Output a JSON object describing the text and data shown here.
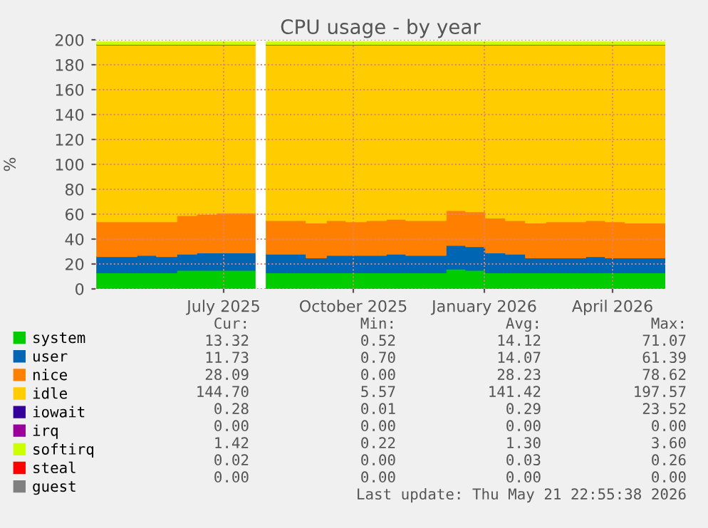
{
  "chart_data": {
    "type": "area",
    "stacked": true,
    "title": "CPU usage - by year",
    "ylabel": "%",
    "x": [
      "2025-04-17",
      "2025-05-01",
      "2025-05-15",
      "2025-05-29",
      "2025-06-12",
      "2025-06-26",
      "2025-07-10",
      "2025-07-24",
      "2025-08-06",
      "2025-08-10",
      "2025-08-14",
      "2025-08-28",
      "2025-09-11",
      "2025-09-25",
      "2025-10-09",
      "2025-10-23",
      "2025-11-06",
      "2025-11-20",
      "2025-12-04",
      "2025-12-18",
      "2026-01-01",
      "2026-01-15",
      "2026-01-29",
      "2026-02-12",
      "2026-02-26",
      "2026-03-12",
      "2026-03-26",
      "2026-04-09",
      "2026-04-23",
      "2026-05-07",
      "2026-05-21"
    ],
    "series": [
      {
        "name": "system",
        "color": "#00cc00",
        "values": [
          13,
          13,
          13,
          13,
          15,
          15,
          15,
          15,
          15,
          null,
          13,
          13,
          13,
          13,
          13,
          13,
          13,
          13,
          13,
          16,
          15,
          13,
          13,
          13,
          13,
          13,
          13,
          13,
          13,
          13,
          13
        ]
      },
      {
        "name": "user",
        "color": "#0066b3",
        "values": [
          13,
          13,
          14,
          13,
          13,
          14,
          14,
          14,
          14,
          null,
          15,
          15,
          12,
          14,
          14,
          14,
          15,
          14,
          14,
          19,
          19,
          16,
          15,
          12,
          12,
          12,
          13,
          12,
          12,
          12,
          12
        ]
      },
      {
        "name": "nice",
        "color": "#ff8000",
        "values": [
          28,
          28,
          27,
          28,
          31,
          31,
          32,
          32,
          32,
          null,
          27,
          27,
          28,
          28,
          27,
          28,
          28,
          28,
          28,
          28,
          28,
          28,
          27,
          28,
          29,
          29,
          29,
          29,
          28,
          28,
          28
        ]
      },
      {
        "name": "idle",
        "color": "#ffcc00",
        "values": [
          142,
          142,
          142,
          142,
          137,
          136,
          135,
          135,
          135,
          null,
          141,
          141,
          143,
          141,
          142,
          141,
          140,
          141,
          141,
          133,
          134,
          139,
          141,
          143,
          142,
          142,
          141,
          142,
          143,
          143,
          143
        ]
      },
      {
        "name": "iowait",
        "color": "#330099",
        "values": [
          0.3,
          0.3,
          0.3,
          0.3,
          0.3,
          0.3,
          0.3,
          0.3,
          0.3,
          null,
          0.3,
          0.3,
          0.3,
          0.3,
          0.3,
          0.3,
          0.3,
          0.3,
          0.3,
          0.3,
          0.3,
          0.3,
          0.3,
          0.3,
          0.3,
          0.3,
          0.3,
          0.3,
          0.3,
          0.3,
          0.3
        ]
      },
      {
        "name": "irq",
        "color": "#990099",
        "values": [
          null,
          null,
          null,
          null,
          null,
          null,
          null,
          null,
          null,
          null,
          null,
          null,
          null,
          null,
          null,
          null,
          null,
          null,
          null,
          null,
          null,
          null,
          null,
          null,
          null,
          null,
          null,
          null,
          null,
          null,
          null
        ]
      },
      {
        "name": "softirq",
        "color": "#ccff00",
        "values": [
          2,
          2,
          2,
          2,
          2,
          2,
          2,
          2,
          2,
          null,
          2,
          2,
          2,
          2,
          2,
          2,
          2,
          2,
          2,
          2,
          2,
          2,
          2,
          2,
          2,
          2,
          2,
          2,
          2,
          2,
          2
        ]
      },
      {
        "name": "steal",
        "color": "#ff0000",
        "values": [
          null,
          null,
          null,
          null,
          null,
          null,
          null,
          null,
          null,
          null,
          null,
          null,
          null,
          null,
          null,
          null,
          null,
          null,
          null,
          null,
          null,
          null,
          null,
          null,
          null,
          null,
          null,
          null,
          null,
          null,
          null
        ]
      },
      {
        "name": "guest",
        "color": "#808080",
        "values": [
          null,
          null,
          null,
          null,
          null,
          null,
          null,
          null,
          null,
          null,
          null,
          null,
          null,
          null,
          null,
          null,
          null,
          null,
          null,
          null,
          null,
          null,
          null,
          null,
          null,
          null,
          null,
          null,
          null,
          null,
          null
        ]
      }
    ],
    "xlim": [
      "2025-04-16",
      "2026-05-21"
    ],
    "xticks": [
      {
        "value": "2025-07-15",
        "label": "July 2025"
      },
      {
        "value": "2025-10-14",
        "label": "October 2025"
      },
      {
        "value": "2026-01-14",
        "label": "January 2026"
      },
      {
        "value": "2026-04-14",
        "label": "April 2026"
      }
    ],
    "ylim": [
      0,
      200
    ],
    "yticks": [
      0,
      20,
      40,
      60,
      80,
      100,
      120,
      140,
      160,
      180,
      200
    ],
    "grid": true,
    "legend": "bottom left",
    "annotations": [
      "Cur:",
      "Min:",
      "Avg:",
      "Max:",
      "13.32",
      "0.52",
      "14.12",
      "71.07",
      "11.73",
      "0.70",
      "14.07",
      "61.39",
      "28.09",
      "0.00",
      "28.23",
      "78.62",
      "144.70",
      "5.57",
      "141.42",
      "197.57",
      "0.28",
      "0.01",
      "0.29",
      "23.52",
      "0.00",
      "0.00",
      "0.00",
      "0.00",
      "1.42",
      "0.22",
      "1.30",
      "3.60",
      "0.02",
      "0.00",
      "0.03",
      "0.26",
      "0.00",
      "0.00",
      "0.00",
      "0.00",
      "Last update: Thu May 21 22:55:38 2026"
    ]
  }
}
